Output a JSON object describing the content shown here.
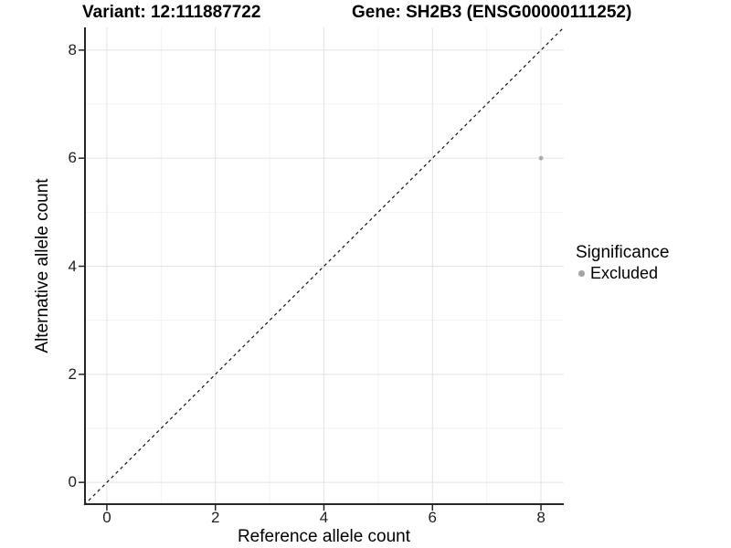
{
  "chart_data": {
    "type": "scatter",
    "title_left": "Variant: 12:111887722",
    "title_right": "Gene: SH2B3 (ENSG00000111252)",
    "xlabel": "Reference allele count",
    "ylabel": "Alternative allele count",
    "x_ticks": [
      0,
      2,
      4,
      6,
      8
    ],
    "y_ticks": [
      0,
      2,
      4,
      6,
      8
    ],
    "x_minor": [
      1,
      3,
      5,
      7
    ],
    "y_minor": [
      1,
      3,
      5,
      7
    ],
    "xlim": [
      -0.42,
      8.42
    ],
    "ylim": [
      -0.42,
      8.42
    ],
    "grid": true,
    "legend_position": "right",
    "reference_line": {
      "type": "identity",
      "style": "dashed",
      "from": -0.42,
      "to": 8.42
    },
    "series": [
      {
        "name": "Excluded",
        "color": "#aaaaaa",
        "points": [
          {
            "x": 8,
            "y": 6
          }
        ]
      }
    ],
    "legend": {
      "title": "Significance",
      "items": [
        {
          "label": "Excluded",
          "color": "#a3a3a3"
        }
      ]
    },
    "colors": {
      "grid_major": "#e3e3e3",
      "grid_minor": "#f2f2f2",
      "axis": "#262626",
      "dash_line": "#111111",
      "point": "#aaaaaa",
      "tick_text": "#1f1f1f"
    }
  }
}
